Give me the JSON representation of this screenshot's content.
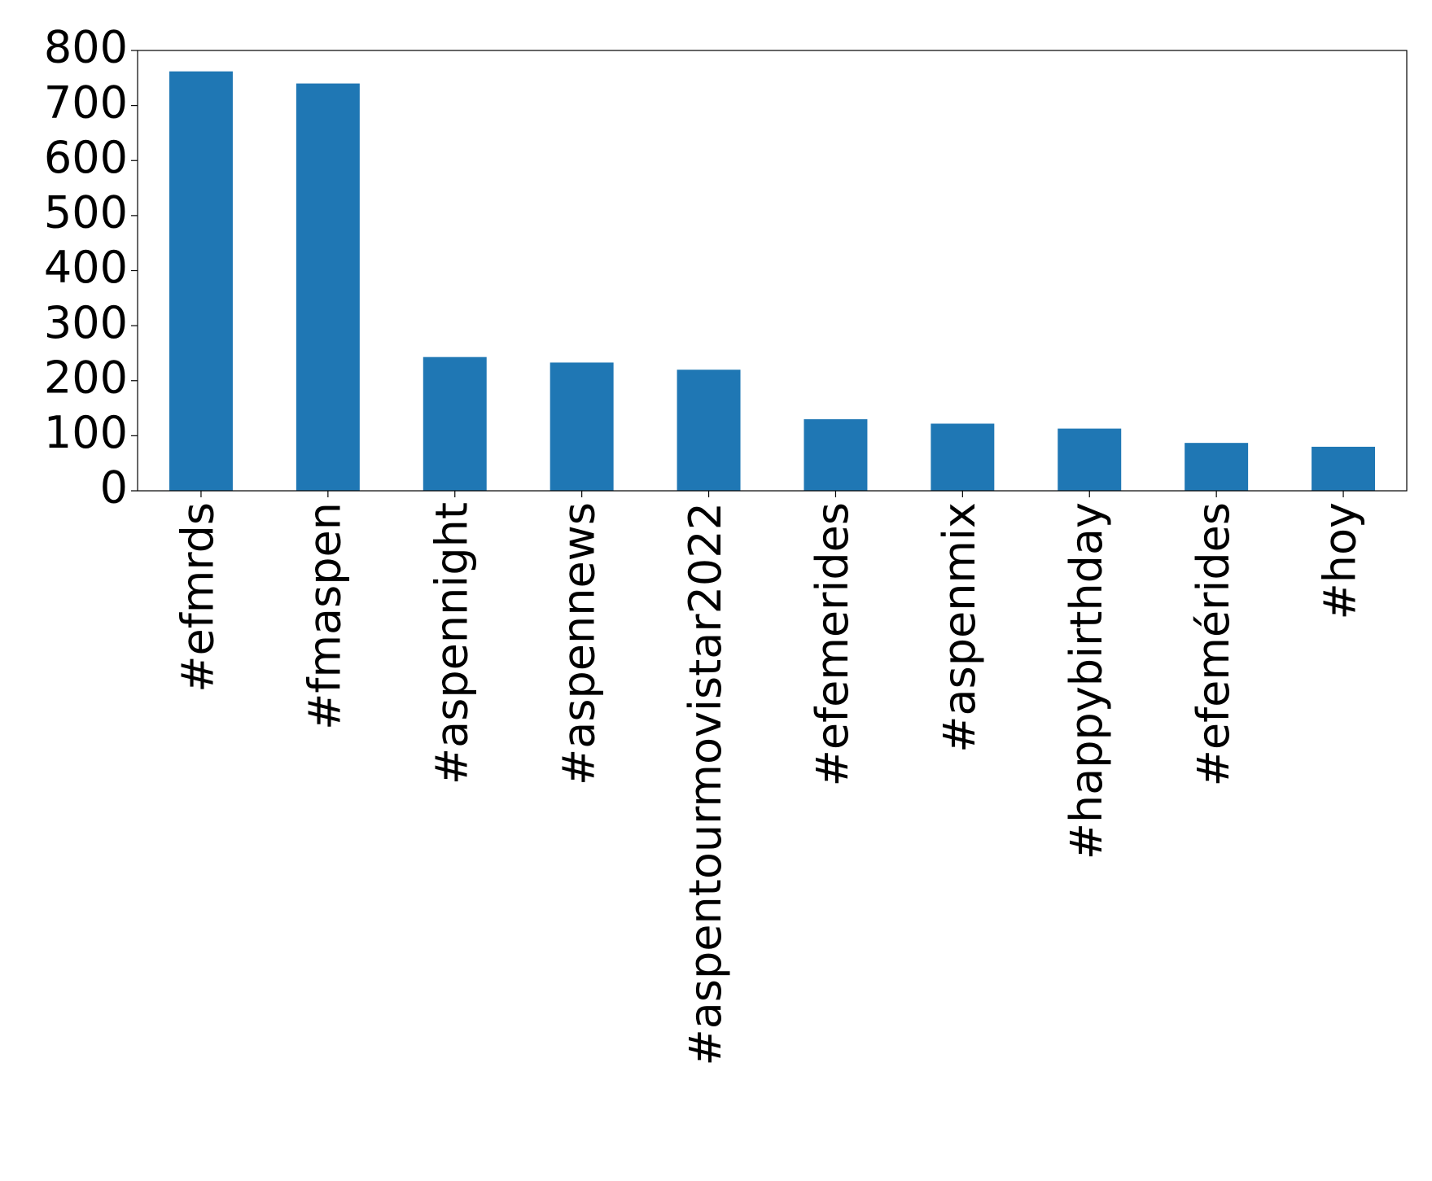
{
  "chart_data": {
    "type": "bar",
    "categories": [
      "#efmrds",
      "#fmaspen",
      "#aspennight",
      "#aspennews",
      "#aspentourmovistar2022",
      "#efemerides",
      "#aspenmix",
      "#happybirthday",
      "#efemérides",
      "#hoy"
    ],
    "values": [
      762,
      740,
      243,
      233,
      220,
      130,
      122,
      113,
      87,
      80
    ],
    "color": "#1f77b4",
    "ylim": [
      0,
      800
    ],
    "yticks": [
      0,
      100,
      200,
      300,
      400,
      500,
      600,
      700,
      800
    ],
    "grid": false
  }
}
